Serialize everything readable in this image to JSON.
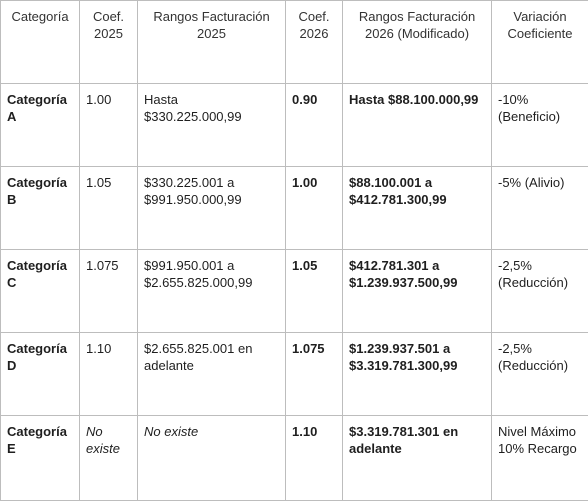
{
  "headers": [
    "Categoría",
    "Coef. 2025",
    "Rangos Facturación 2025",
    "Coef. 2026",
    "Rangos Facturación 2026 (Modificado)",
    "Variación Coeficiente"
  ],
  "rows": [
    {
      "categoria": "Categoría A",
      "coef_2025": "1.00",
      "rango_2025": "Hasta $330.225.000,99",
      "coef_2026": "0.90",
      "rango_2026": "Hasta $88.100.000,99",
      "variacion": "-10% (Beneficio)"
    },
    {
      "categoria": "Categoría B",
      "coef_2025": "1.05",
      "rango_2025": "$330.225.001 a $991.950.000,99",
      "coef_2026": "1.00",
      "rango_2026": "$88.100.001 a $412.781.300,99",
      "variacion": "-5% (Alivio)"
    },
    {
      "categoria": "Categoría C",
      "coef_2025": "1.075",
      "rango_2025": "$991.950.001 a $2.655.825.000,99",
      "coef_2026": "1.05",
      "rango_2026": "$412.781.301 a $1.239.937.500,99",
      "variacion": "-2,5% (Reducción)"
    },
    {
      "categoria": "Categoría D",
      "coef_2025": "1.10",
      "rango_2025": "$2.655.825.001 en adelante",
      "coef_2026": "1.075",
      "rango_2026": "$1.239.937.501 a $3.319.781.300,99",
      "variacion": "-2,5% (Reducción)"
    },
    {
      "categoria": "Categoría E",
      "coef_2025": "No existe",
      "rango_2025": "No existe",
      "coef_2026": "1.10",
      "rango_2026": "$3.319.781.301 en adelante",
      "variacion": "Nivel Máximo 10% Recargo"
    }
  ]
}
